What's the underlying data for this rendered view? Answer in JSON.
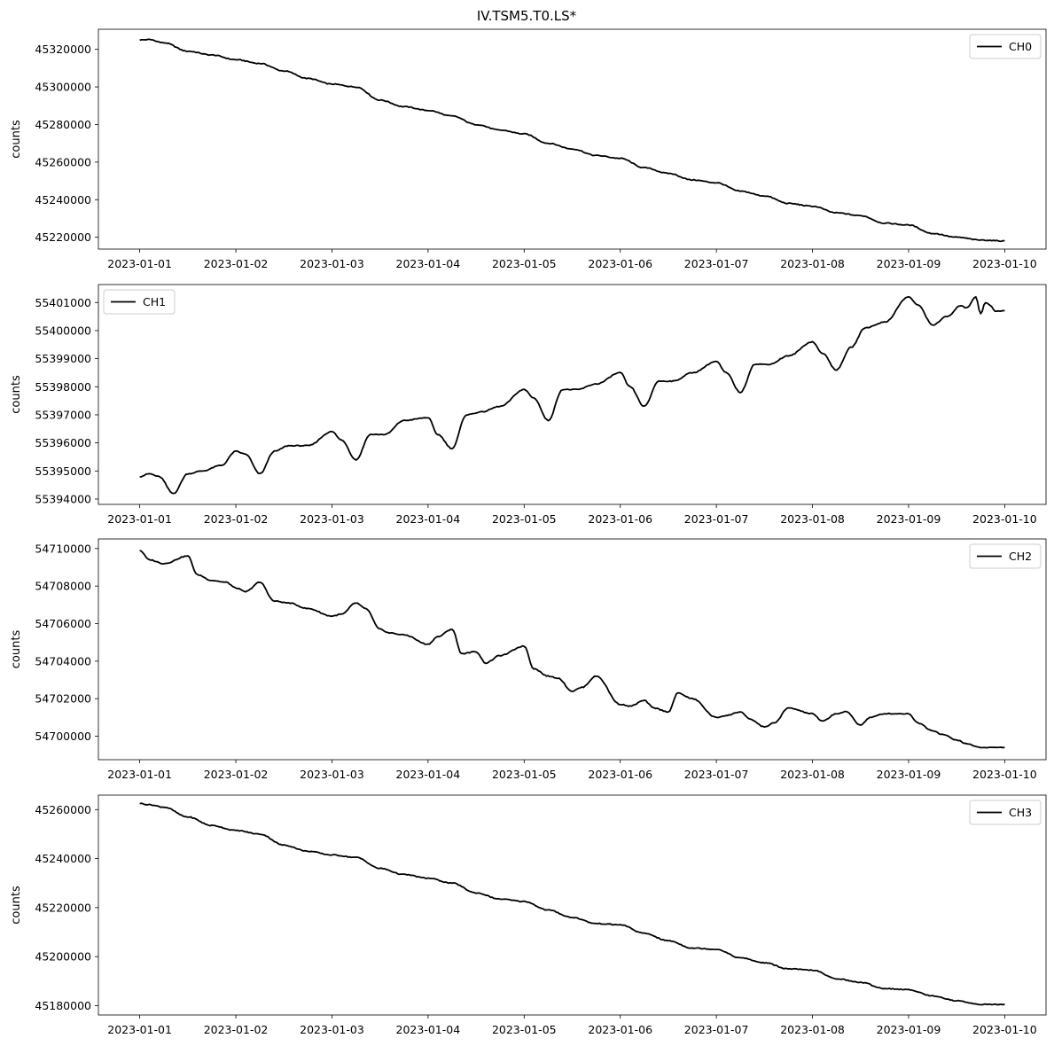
{
  "figure": {
    "title": "IV.TSM5.T0.LS*"
  },
  "chart_data": [
    {
      "type": "line",
      "ylabel": "counts",
      "legend": "top-right",
      "legend_entry": "CH0",
      "x_ticks": [
        "2023-01-01",
        "2023-01-02",
        "2023-01-03",
        "2023-01-04",
        "2023-01-05",
        "2023-01-06",
        "2023-01-07",
        "2023-01-08",
        "2023-01-09",
        "2023-01-10"
      ],
      "y_ticks": [
        45220000,
        45240000,
        45260000,
        45280000,
        45300000,
        45320000
      ],
      "xlim": [
        -0.43,
        9.43
      ],
      "ylim": [
        45213700,
        45330700
      ],
      "series": [
        {
          "name": "CH0",
          "color": "#000000",
          "x": [
            0,
            0.1,
            0.25,
            0.5,
            0.75,
            1,
            1.25,
            1.5,
            1.75,
            2,
            2.25,
            2.5,
            2.75,
            3,
            3.25,
            3.5,
            3.75,
            4,
            4.25,
            4.5,
            4.75,
            5,
            5.25,
            5.5,
            5.75,
            6,
            6.25,
            6.5,
            6.75,
            7,
            7.25,
            7.5,
            7.75,
            8,
            8.25,
            8.5,
            8.75,
            9
          ],
          "y": [
            45325000,
            45325200,
            45323500,
            45319000,
            45317000,
            45314500,
            45312500,
            45308500,
            45304500,
            45301500,
            45300000,
            45293000,
            45289500,
            45287500,
            45284500,
            45280000,
            45277000,
            45275000,
            45270000,
            45267000,
            45263500,
            45262000,
            45257000,
            45254000,
            45250500,
            45249000,
            45244500,
            45242000,
            45238000,
            45236500,
            45233000,
            45231500,
            45227500,
            45226500,
            45222000,
            45220000,
            45218500,
            45218000
          ]
        }
      ]
    },
    {
      "type": "line",
      "ylabel": "counts",
      "legend": "top-left",
      "legend_entry": "CH1",
      "x_ticks": [
        "2023-01-01",
        "2023-01-02",
        "2023-01-03",
        "2023-01-04",
        "2023-01-05",
        "2023-01-06",
        "2023-01-07",
        "2023-01-08",
        "2023-01-09",
        "2023-01-10"
      ],
      "y_ticks": [
        55394000,
        55395000,
        55396000,
        55397000,
        55398000,
        55399000,
        55400000,
        55401000
      ],
      "xlim": [
        -0.43,
        9.43
      ],
      "ylim": [
        55393810,
        55401640
      ],
      "series": [
        {
          "name": "CH1",
          "color": "#000000",
          "x": [
            0,
            0.1,
            0.2,
            0.35,
            0.5,
            0.65,
            0.85,
            1.0,
            1.1,
            1.25,
            1.4,
            1.55,
            1.75,
            2.0,
            2.1,
            2.25,
            2.4,
            2.55,
            2.75,
            3.0,
            3.1,
            3.25,
            3.4,
            3.55,
            3.75,
            4.0,
            4.1,
            4.25,
            4.4,
            4.55,
            4.75,
            5.0,
            5.1,
            5.25,
            5.4,
            5.55,
            5.75,
            6.0,
            6.1,
            6.25,
            6.4,
            6.55,
            6.75,
            7.0,
            7.1,
            7.25,
            7.4,
            7.55,
            7.75,
            8.0,
            8.1,
            8.25,
            8.4,
            8.55,
            8.6,
            8.7,
            8.75,
            8.8,
            8.85,
            8.9,
            9.0
          ],
          "y": [
            55394800,
            55394900,
            55394800,
            55394200,
            55394900,
            55395000,
            55395200,
            55395700,
            55395600,
            55394900,
            55395700,
            55395900,
            55395900,
            55396400,
            55396100,
            55395400,
            55396300,
            55396300,
            55396800,
            55396900,
            55396300,
            55395800,
            55397000,
            55397100,
            55397300,
            55397900,
            55397600,
            55396800,
            55397900,
            55397900,
            55398100,
            55398500,
            55398000,
            55397300,
            55398200,
            55398200,
            55398500,
            55398900,
            55398500,
            55397800,
            55398800,
            55398800,
            55399100,
            55399600,
            55399200,
            55398600,
            55399400,
            55400100,
            55400300,
            55401200,
            55400900,
            55400200,
            55400500,
            55400900,
            55400800,
            55401200,
            55400600,
            55401000,
            55400900,
            55400700,
            55400700
          ]
        }
      ]
    },
    {
      "type": "line",
      "ylabel": "counts",
      "legend": "top-right",
      "legend_entry": "CH2",
      "x_ticks": [
        "2023-01-01",
        "2023-01-02",
        "2023-01-03",
        "2023-01-04",
        "2023-01-05",
        "2023-01-06",
        "2023-01-07",
        "2023-01-08",
        "2023-01-09",
        "2023-01-10"
      ],
      "y_ticks": [
        54700000,
        54702000,
        54704000,
        54706000,
        54708000,
        54710000
      ],
      "xlim": [
        -0.43,
        9.43
      ],
      "ylim": [
        54698750,
        54710510
      ],
      "series": [
        {
          "name": "CH2",
          "color": "#000000",
          "x": [
            0,
            0.1,
            0.25,
            0.5,
            0.6,
            0.75,
            0.9,
            1.0,
            1.1,
            1.25,
            1.4,
            1.55,
            1.75,
            2.0,
            2.1,
            2.25,
            2.35,
            2.5,
            2.6,
            2.75,
            3.0,
            3.1,
            3.25,
            3.35,
            3.5,
            3.6,
            3.75,
            4.0,
            4.1,
            4.25,
            4.35,
            4.5,
            4.6,
            4.75,
            5.0,
            5.1,
            5.25,
            5.35,
            5.5,
            5.6,
            5.75,
            6.0,
            6.1,
            6.25,
            6.35,
            6.5,
            6.6,
            6.75,
            7.0,
            7.1,
            7.25,
            7.35,
            7.5,
            7.6,
            7.75,
            8.0,
            8.1,
            8.25,
            8.35,
            8.5,
            8.6,
            8.75,
            8.85,
            9.0
          ],
          "y": [
            54709900,
            54709400,
            54709200,
            54709600,
            54708600,
            54708300,
            54708200,
            54707900,
            54707700,
            54708200,
            54707200,
            54707100,
            54706800,
            54706400,
            54706500,
            54707100,
            54706800,
            54705700,
            54705500,
            54705400,
            54704900,
            54705300,
            54705700,
            54704400,
            54704500,
            54703900,
            54704300,
            54704800,
            54703600,
            54703200,
            54703100,
            54702400,
            54702600,
            54703200,
            54701700,
            54701600,
            54701900,
            54701500,
            54701300,
            54702300,
            54702000,
            54701000,
            54701100,
            54701300,
            54700900,
            54700500,
            54700700,
            54701500,
            54701200,
            54700800,
            54701200,
            54701300,
            54700600,
            54701000,
            54701200,
            54701200,
            54700700,
            54700300,
            54700100,
            54699800,
            54699600,
            54699400,
            54699400,
            54699400
          ]
        }
      ]
    },
    {
      "type": "line",
      "ylabel": "counts",
      "legend": "top-right",
      "legend_entry": "CH3",
      "x_ticks": [
        "2023-01-01",
        "2023-01-02",
        "2023-01-03",
        "2023-01-04",
        "2023-01-05",
        "2023-01-06",
        "2023-01-07",
        "2023-01-08",
        "2023-01-09",
        "2023-01-10"
      ],
      "y_ticks": [
        45180000,
        45200000,
        45220000,
        45240000,
        45260000
      ],
      "xlim": [
        -0.43,
        9.43
      ],
      "ylim": [
        45176200,
        45265900
      ],
      "series": [
        {
          "name": "CH3",
          "color": "#000000",
          "x": [
            0,
            0.1,
            0.25,
            0.5,
            0.75,
            1,
            1.25,
            1.5,
            1.75,
            2,
            2.25,
            2.5,
            2.75,
            3,
            3.25,
            3.5,
            3.75,
            4,
            4.25,
            4.5,
            4.75,
            5,
            5.25,
            5.5,
            5.75,
            6,
            6.25,
            6.5,
            6.75,
            7,
            7.25,
            7.5,
            7.75,
            8,
            8.25,
            8.5,
            8.75,
            9
          ],
          "y": [
            45262500,
            45262000,
            45261000,
            45257000,
            45253500,
            45251500,
            45250000,
            45245500,
            45243000,
            45241500,
            45240500,
            45236000,
            45233500,
            45232000,
            45230000,
            45226000,
            45223500,
            45222500,
            45219000,
            45216000,
            45213500,
            45213000,
            45209500,
            45206500,
            45203500,
            45203000,
            45199500,
            45197500,
            45195000,
            45194500,
            45191000,
            45189500,
            45187000,
            45186500,
            45184000,
            45182000,
            45180500,
            45180500
          ]
        }
      ]
    }
  ]
}
